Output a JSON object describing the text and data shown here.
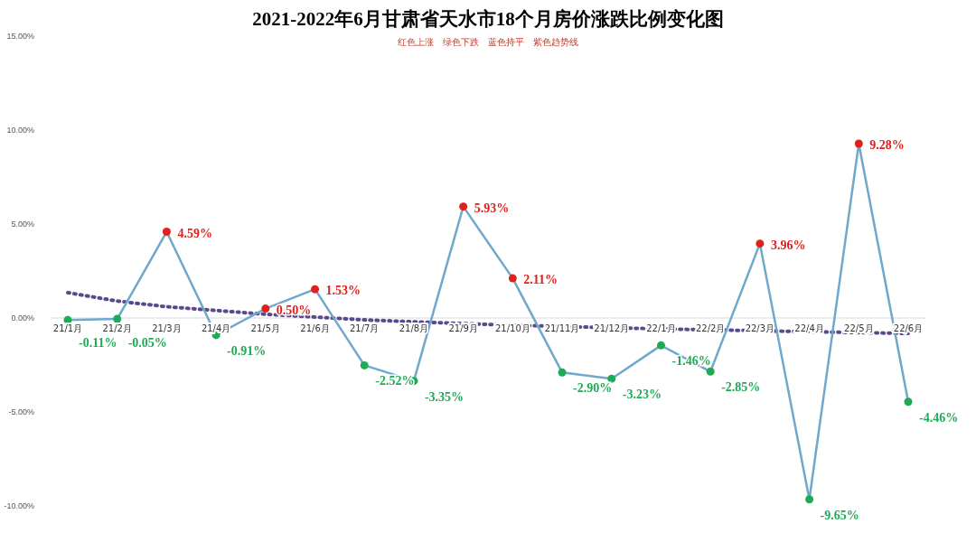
{
  "chart_data": {
    "type": "line",
    "title": "2021-2022年6月甘肃省天水市18个月房价涨跌比例变化图",
    "annotations": [
      "红色上涨　绿色下跌　蓝色持平　紫色趋势线"
    ],
    "categories": [
      "21/1月",
      "21/2月",
      "21/3月",
      "21/4月",
      "21/5月",
      "21/6月",
      "21/7月",
      "21/8月",
      "21/9月",
      "21/10月",
      "21/11月",
      "21/12月",
      "22/1月",
      "22/2月",
      "22/3月",
      "22/4月",
      "22/5月",
      "22/6月"
    ],
    "series": [
      {
        "type": "line",
        "color": "#6fa8cc",
        "marker": "circle",
        "values": [
          -0.11,
          -0.05,
          4.59,
          -0.91,
          0.5,
          1.53,
          -2.52,
          -3.35,
          5.93,
          2.11,
          -2.9,
          -3.23,
          -1.46,
          -2.85,
          3.96,
          -9.65,
          9.28,
          -4.46
        ],
        "colors": [
          "#1faa55",
          "#1faa55",
          "#e0201b",
          "#1faa55",
          "#e0201b",
          "#e0201b",
          "#1faa55",
          "#1faa55",
          "#e0201b",
          "#e0201b",
          "#1faa55",
          "#1faa55",
          "#1faa55",
          "#1faa55",
          "#e0201b",
          "#1faa55",
          "#e0201b",
          "#1faa55"
        ],
        "value_labels": [
          "-0.11%",
          "-0.05%",
          "4.59%",
          "-0.91%",
          "0.50%",
          "1.53%",
          "-2.52%",
          "-3.35%",
          "5.93%",
          "2.11%",
          "-2.90%",
          "-3.23%",
          "-1.46%",
          "-2.85%",
          "3.96%",
          "-9.65%",
          "9.28%",
          "-4.46%"
        ]
      },
      {
        "type": "line",
        "color": "#5a4a8c",
        "marker": "none",
        "line_style": "dotted",
        "values": [
          1.35,
          0.9,
          0.6,
          0.4,
          0.2,
          0.05,
          -0.1,
          -0.2,
          -0.3,
          -0.38,
          -0.45,
          -0.52,
          -0.58,
          -0.63,
          -0.68,
          -0.73,
          -0.78,
          -0.82
        ]
      }
    ],
    "ylim": [
      -10,
      15
    ],
    "yticks": [
      {
        "value": -10,
        "label": "-10.00%"
      },
      {
        "value": -5,
        "label": "-5.00%"
      },
      {
        "value": 0,
        "label": "0.00%"
      },
      {
        "value": 5,
        "label": "5.00%"
      },
      {
        "value": 10,
        "label": "10.00%"
      },
      {
        "value": 15,
        "label": "15.00%"
      }
    ],
    "grid": false
  }
}
